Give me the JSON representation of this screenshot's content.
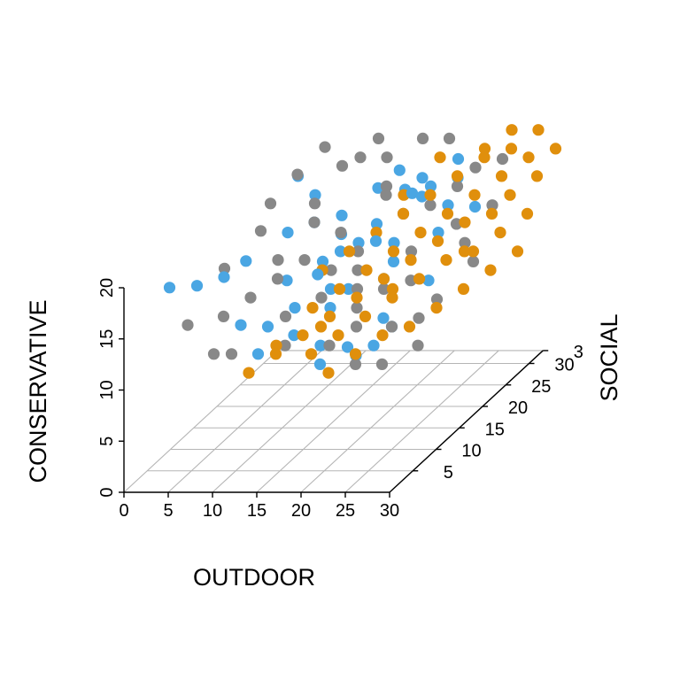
{
  "chart_data": {
    "type": "scatter3d",
    "title": "",
    "xlabel": "OUTDOOR",
    "ylabel": "SOCIAL",
    "zlabel": "CONSERVATIVE",
    "xlim": [
      0,
      30
    ],
    "ylim": [
      0,
      33
    ],
    "zlim": [
      0,
      20
    ],
    "x_ticks": [
      "0",
      "5",
      "10",
      "15",
      "20",
      "25",
      "30"
    ],
    "y_ticks": [
      "5",
      "10",
      "15",
      "20",
      "25",
      "30"
    ],
    "y_edge_label": "3",
    "z_ticks": [
      "0",
      "5",
      "10",
      "15",
      "20"
    ],
    "grid": "floor",
    "legend": "none",
    "series": [
      {
        "color": "#4aa6e3",
        "points": [
          [
            2,
            6,
            17.5
          ],
          [
            3,
            10,
            16
          ],
          [
            5,
            12,
            16
          ],
          [
            6,
            26,
            20
          ],
          [
            8,
            11,
            18
          ],
          [
            9,
            24,
            19
          ],
          [
            11,
            20,
            18
          ],
          [
            13,
            22,
            16
          ],
          [
            14,
            15,
            15
          ],
          [
            15,
            8,
            12
          ],
          [
            16,
            30,
            17
          ],
          [
            17,
            12,
            13
          ],
          [
            18,
            25,
            21
          ],
          [
            19,
            18,
            17
          ],
          [
            20,
            10,
            10
          ],
          [
            21,
            22,
            20
          ],
          [
            22,
            14,
            15
          ],
          [
            23,
            28,
            19
          ],
          [
            24,
            8,
            11
          ],
          [
            25,
            20,
            17
          ],
          [
            26,
            16,
            14
          ],
          [
            12,
            6,
            11
          ],
          [
            15,
            18,
            16
          ],
          [
            18,
            14,
            14
          ],
          [
            20,
            26,
            18
          ],
          [
            22,
            30,
            20
          ],
          [
            10,
            16,
            14
          ],
          [
            13,
            12,
            13
          ],
          [
            17,
            22,
            17
          ],
          [
            19,
            6,
            10
          ],
          [
            21,
            18,
            15
          ],
          [
            23,
            12,
            12
          ],
          [
            24,
            24,
            18
          ],
          [
            14,
            28,
            18
          ],
          [
            16,
            20,
            16
          ],
          [
            18,
            8,
            11
          ],
          [
            12,
            24,
            17
          ],
          [
            20,
            20,
            16
          ],
          [
            25,
            10,
            12
          ],
          [
            11,
            10,
            12
          ],
          [
            26,
            26,
            17
          ],
          [
            22,
            8,
            10
          ],
          [
            19,
            28,
            19
          ],
          [
            16,
            14,
            14
          ],
          [
            13,
            18,
            15
          ],
          [
            21,
            26,
            19
          ],
          [
            8,
            20,
            17
          ],
          [
            9,
            8,
            13
          ]
        ]
      },
      {
        "color": "#888888",
        "points": [
          [
            3,
            8,
            13
          ],
          [
            4,
            14,
            16
          ],
          [
            6,
            18,
            18
          ],
          [
            7,
            24,
            21
          ],
          [
            8,
            12,
            14
          ],
          [
            9,
            6,
            11
          ],
          [
            10,
            22,
            19
          ],
          [
            11,
            26,
            21
          ],
          [
            12,
            16,
            16
          ],
          [
            13,
            10,
            13
          ],
          [
            14,
            20,
            17
          ],
          [
            15,
            28,
            21
          ],
          [
            16,
            12,
            14
          ],
          [
            17,
            24,
            19
          ],
          [
            18,
            16,
            15
          ],
          [
            19,
            8,
            11
          ],
          [
            20,
            22,
            18
          ],
          [
            21,
            30,
            22
          ],
          [
            22,
            14,
            14
          ],
          [
            23,
            18,
            16
          ],
          [
            24,
            26,
            19
          ],
          [
            25,
            10,
            12
          ],
          [
            26,
            22,
            17
          ],
          [
            27,
            30,
            20
          ],
          [
            28,
            14,
            13
          ],
          [
            29,
            24,
            18
          ],
          [
            30,
            18,
            15
          ],
          [
            5,
            22,
            19
          ],
          [
            6,
            10,
            13
          ],
          [
            10,
            14,
            15
          ],
          [
            12,
            28,
            21
          ],
          [
            14,
            8,
            11
          ],
          [
            16,
            26,
            19
          ],
          [
            18,
            30,
            22
          ],
          [
            20,
            12,
            13
          ],
          [
            22,
            24,
            18
          ],
          [
            24,
            16,
            14
          ],
          [
            26,
            6,
            10
          ],
          [
            28,
            20,
            16
          ],
          [
            8,
            28,
            22
          ],
          [
            15,
            16,
            15
          ],
          [
            17,
            18,
            16
          ],
          [
            19,
            14,
            14
          ],
          [
            21,
            10,
            12
          ],
          [
            23,
            6,
            10
          ],
          [
            11,
            20,
            18
          ],
          [
            13,
            30,
            22
          ],
          [
            25,
            28,
            20
          ],
          [
            27,
            12,
            12
          ],
          [
            9,
            16,
            16
          ],
          [
            29,
            8,
            11
          ],
          [
            7,
            6,
            11
          ]
        ]
      },
      {
        "color": "#e08f0c",
        "points": [
          [
            12,
            4,
            10
          ],
          [
            14,
            6,
            11
          ],
          [
            16,
            8,
            12
          ],
          [
            18,
            10,
            13
          ],
          [
            20,
            12,
            14
          ],
          [
            22,
            14,
            15
          ],
          [
            24,
            16,
            16
          ],
          [
            26,
            18,
            17
          ],
          [
            28,
            20,
            18
          ],
          [
            30,
            22,
            18
          ],
          [
            15,
            12,
            13
          ],
          [
            17,
            14,
            14
          ],
          [
            19,
            16,
            15
          ],
          [
            21,
            18,
            16
          ],
          [
            23,
            20,
            17
          ],
          [
            25,
            22,
            18
          ],
          [
            27,
            24,
            19
          ],
          [
            29,
            26,
            20
          ],
          [
            31,
            28,
            21
          ],
          [
            33,
            30,
            21
          ],
          [
            18,
            6,
            11
          ],
          [
            20,
            8,
            12
          ],
          [
            22,
            10,
            13
          ],
          [
            24,
            12,
            14
          ],
          [
            26,
            14,
            15
          ],
          [
            28,
            16,
            16
          ],
          [
            30,
            18,
            16
          ],
          [
            32,
            20,
            17
          ],
          [
            34,
            22,
            18
          ],
          [
            21,
            4,
            10
          ],
          [
            23,
            6,
            11
          ],
          [
            25,
            8,
            12
          ],
          [
            27,
            10,
            12
          ],
          [
            29,
            12,
            13
          ],
          [
            31,
            14,
            14
          ],
          [
            33,
            16,
            15
          ],
          [
            35,
            18,
            16
          ],
          [
            26,
            28,
            21
          ],
          [
            28,
            30,
            21
          ],
          [
            30,
            32,
            22
          ],
          [
            24,
            26,
            20
          ],
          [
            22,
            24,
            19
          ],
          [
            20,
            22,
            18
          ],
          [
            18,
            20,
            17
          ],
          [
            16,
            18,
            16
          ],
          [
            14,
            16,
            15
          ],
          [
            13,
            8,
            11
          ],
          [
            19,
            24,
            19
          ],
          [
            21,
            28,
            21
          ],
          [
            25,
            30,
            21
          ],
          [
            27,
            32,
            22
          ],
          [
            31,
            24,
            19
          ],
          [
            33,
            26,
            20
          ],
          [
            17,
            10,
            12
          ],
          [
            23,
            14,
            14
          ],
          [
            29,
            18,
            16
          ]
        ]
      }
    ]
  }
}
